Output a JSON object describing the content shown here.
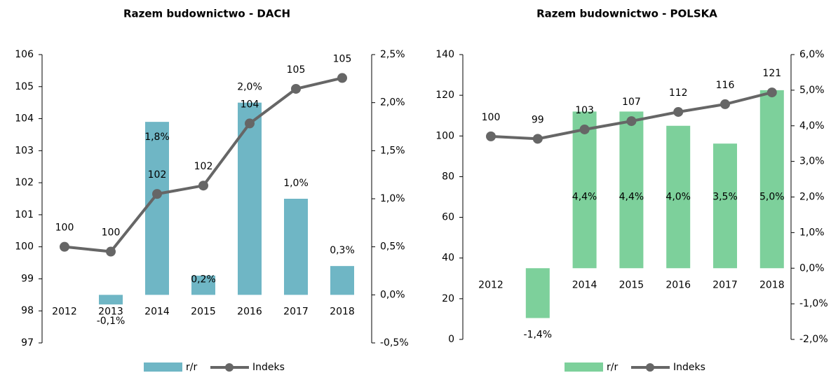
{
  "chart_data": [
    {
      "type": "combo",
      "title": "Razem budownictwo - DACH",
      "categories": [
        "2012",
        "2013",
        "2014",
        "2015",
        "2016",
        "2017",
        "2018"
      ],
      "ylim": [
        97,
        106
      ],
      "yticks": [
        97,
        98,
        99,
        100,
        101,
        102,
        103,
        104,
        105,
        106
      ],
      "y2lim": [
        -0.5,
        2.5
      ],
      "y2ticks": [
        {
          "value": -0.5,
          "label": "-0,5%"
        },
        {
          "value": 0,
          "label": "0,0%"
        },
        {
          "value": 0.5,
          "label": "0,5%"
        },
        {
          "value": 1,
          "label": "1,0%"
        },
        {
          "value": 1.5,
          "label": "1,5%"
        },
        {
          "value": 2,
          "label": "2,0%"
        },
        {
          "value": 2.5,
          "label": "2,5%"
        }
      ],
      "series": [
        {
          "name": "r/r",
          "type": "bar",
          "axis": "y2",
          "color": "#6fb6c5",
          "values": [
            null,
            -0.1,
            1.8,
            0.2,
            2.0,
            1.0,
            0.3
          ],
          "value_labels": [
            null,
            "-0,1%",
            "1,8%",
            "0,2%",
            "2,0%",
            "1,0%",
            "0,3%"
          ]
        },
        {
          "name": "Indeks",
          "type": "line",
          "color": "#666666",
          "values": [
            100,
            99.85,
            101.65,
            101.91,
            103.85,
            104.93,
            105.27
          ],
          "value_labels": [
            "100",
            "100",
            "102",
            "102",
            "104",
            "105",
            "105"
          ]
        }
      ]
    },
    {
      "type": "combo",
      "title": "Razem budownictwo - POLSKA",
      "categories": [
        "2012",
        "2013",
        "2014",
        "2015",
        "2016",
        "2017",
        "2018"
      ],
      "ylim": [
        0,
        140
      ],
      "yticks": [
        0,
        20,
        40,
        60,
        80,
        100,
        120,
        140
      ],
      "y2lim": [
        -2,
        6
      ],
      "y2ticks": [
        {
          "value": -2,
          "label": "-2,0%"
        },
        {
          "value": -1,
          "label": "-1,0%"
        },
        {
          "value": 0,
          "label": "0,0%"
        },
        {
          "value": 1,
          "label": "1,0%"
        },
        {
          "value": 2,
          "label": "2,0%"
        },
        {
          "value": 3,
          "label": "3,0%"
        },
        {
          "value": 4,
          "label": "4,0%"
        },
        {
          "value": 5,
          "label": "5,0%"
        },
        {
          "value": 6,
          "label": "6,0%"
        }
      ],
      "series": [
        {
          "name": "r/r",
          "type": "bar",
          "axis": "y2",
          "color": "#7dd09b",
          "values": [
            null,
            -1.4,
            4.4,
            4.4,
            4.0,
            3.5,
            5.0
          ],
          "value_labels": [
            null,
            "-1,4%",
            "4,4%",
            "4,4%",
            "4,0%",
            "3,5%",
            "5,0%"
          ]
        },
        {
          "name": "Indeks",
          "type": "line",
          "color": "#666666",
          "values": [
            99.8,
            98.6,
            103.2,
            107.3,
            111.8,
            115.6,
            121.4
          ],
          "value_labels": [
            "100",
            "99",
            "103",
            "107",
            "112",
            "116",
            "121"
          ]
        }
      ]
    }
  ]
}
